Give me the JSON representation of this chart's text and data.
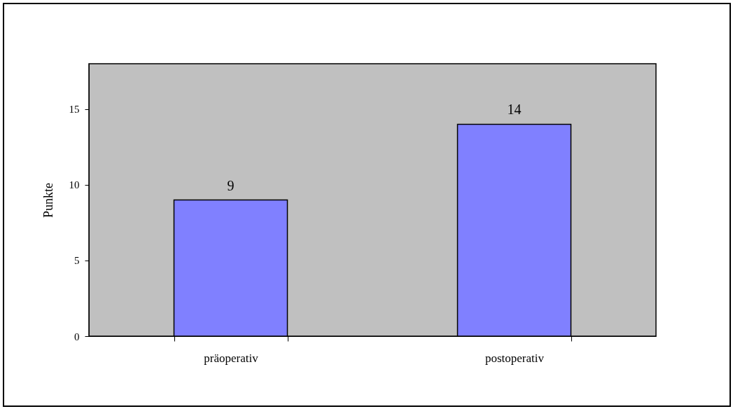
{
  "chart_data": {
    "type": "bar",
    "ylabel": "Punkte",
    "categories": [
      "präoperativ",
      "postoperativ"
    ],
    "values": [
      9,
      14
    ],
    "color": "#8080ff",
    "ylim": [
      0,
      18
    ],
    "yticks": [
      0,
      5,
      10,
      15
    ],
    "data_labels": true
  }
}
